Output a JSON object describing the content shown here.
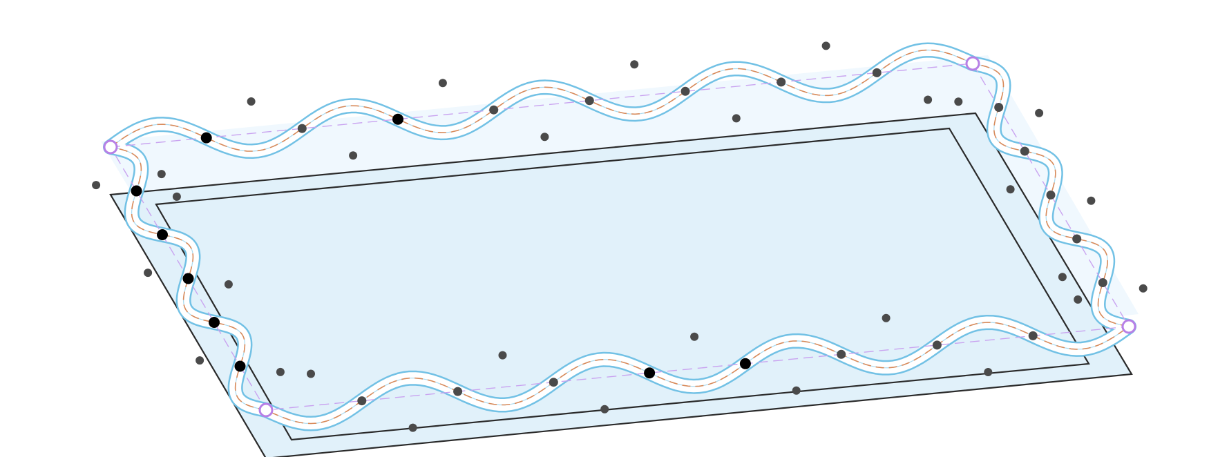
{
  "diagram": {
    "kind": "wavy-border-on-parallelogram",
    "colors": {
      "plate_fill": "#f0f8fe",
      "inner_fill": "#e1f1fa",
      "frame_stroke": "#2a2a2a",
      "tube_stroke": "#72c1e5",
      "tube_core": "#ffffff",
      "center_dash": "#d88a5a",
      "guide_dash": "#c9a3f0",
      "handle": "#b77fe6",
      "node_active": "#000000",
      "node_passive": "#4a4a4a"
    },
    "wave": {
      "top_half_waves": 9,
      "right_half_waves": 6,
      "bottom_half_waves": 9,
      "left_half_waves": 6
    },
    "handles_count": 4
  }
}
